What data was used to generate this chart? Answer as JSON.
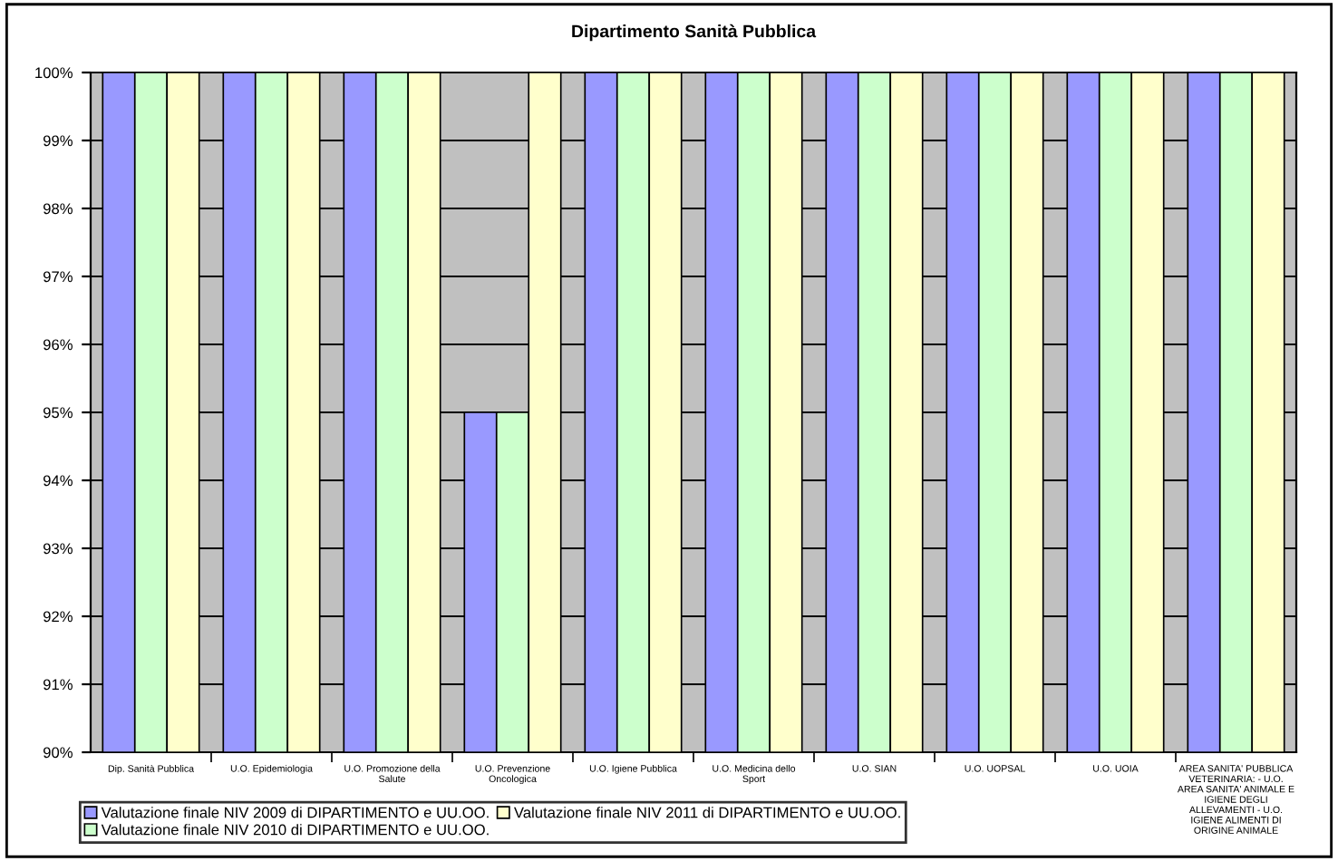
{
  "chart_data": {
    "type": "bar",
    "title": "Dipartimento Sanità Pubblica",
    "categories": [
      "Dip. Sanità Pubblica",
      "U.O. Epidemiologia",
      "U.O. Promozione della Salute",
      "U.O. Prevenzione Oncologica",
      "U.O. Igiene Pubblica",
      "U.O. Medicina dello Sport",
      "U.O. SIAN",
      "U.O. UOPSAL",
      "U.O. UOIA",
      "AREA SANITA' PUBBLICA VETERINARIA: - U.O. AREA SANITA' ANIMALE E IGIENE DEGLI ALLEVAMENTI - U.O. IGIENE ALIMENTI DI ORIGINE ANIMALE"
    ],
    "series": [
      {
        "name": "Valutazione finale NIV 2009 di DIPARTIMENTO e UU.OO.",
        "color": "#9999ff",
        "values": [
          100,
          100,
          100,
          95,
          100,
          100,
          100,
          100,
          100,
          100
        ]
      },
      {
        "name": "Valutazione finale NIV 2010 di DIPARTIMENTO e UU.OO.",
        "color": "#ccffcc",
        "values": [
          100,
          100,
          100,
          95,
          100,
          100,
          100,
          100,
          100,
          100
        ]
      },
      {
        "name": "Valutazione finale NIV 2011 di DIPARTIMENTO e UU.OO.",
        "color": "#ffffcc",
        "values": [
          100,
          100,
          100,
          100,
          100,
          100,
          100,
          100,
          100,
          100
        ]
      }
    ],
    "ylim": [
      90,
      100
    ],
    "yticks": [
      {
        "value": 90,
        "label": "90%"
      },
      {
        "value": 91,
        "label": "91%"
      },
      {
        "value": 92,
        "label": "92%"
      },
      {
        "value": 93,
        "label": "93%"
      },
      {
        "value": 94,
        "label": "94%"
      },
      {
        "value": 95,
        "label": "95%"
      },
      {
        "value": 96,
        "label": "96%"
      },
      {
        "value": 97,
        "label": "97%"
      },
      {
        "value": 98,
        "label": "98%"
      },
      {
        "value": 99,
        "label": "99%"
      },
      {
        "value": 100,
        "label": "100%"
      }
    ],
    "grid": "y",
    "legend": "bottom"
  }
}
